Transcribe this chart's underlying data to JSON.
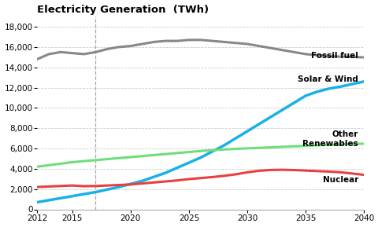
{
  "title": "Electricity Generation  (TWh)",
  "years": [
    2012,
    2013,
    2014,
    2015,
    2016,
    2017,
    2018,
    2019,
    2020,
    2021,
    2022,
    2023,
    2024,
    2025,
    2026,
    2027,
    2028,
    2029,
    2030,
    2031,
    2032,
    2033,
    2034,
    2035,
    2036,
    2037,
    2038,
    2039,
    2040
  ],
  "fossil_fuel": [
    14800,
    15300,
    15500,
    15400,
    15300,
    15500,
    15800,
    16000,
    16100,
    16300,
    16500,
    16600,
    16600,
    16700,
    16700,
    16600,
    16500,
    16400,
    16300,
    16100,
    15900,
    15700,
    15500,
    15300,
    15200,
    15100,
    15050,
    15020,
    14980
  ],
  "solar_wind": [
    700,
    900,
    1100,
    1300,
    1500,
    1700,
    1950,
    2200,
    2500,
    2800,
    3200,
    3600,
    4100,
    4600,
    5100,
    5700,
    6300,
    7000,
    7700,
    8400,
    9100,
    9800,
    10500,
    11200,
    11600,
    11900,
    12100,
    12350,
    12600
  ],
  "other_renewables": [
    4200,
    4350,
    4500,
    4650,
    4750,
    4850,
    4950,
    5050,
    5150,
    5250,
    5350,
    5450,
    5550,
    5650,
    5750,
    5830,
    5900,
    5960,
    6010,
    6060,
    6110,
    6160,
    6210,
    6260,
    6310,
    6360,
    6400,
    6440,
    6470
  ],
  "nuclear": [
    2200,
    2250,
    2300,
    2350,
    2280,
    2300,
    2350,
    2400,
    2450,
    2550,
    2650,
    2750,
    2850,
    2980,
    3080,
    3180,
    3300,
    3450,
    3650,
    3800,
    3880,
    3900,
    3870,
    3820,
    3770,
    3720,
    3650,
    3530,
    3400
  ],
  "fossil_color": "#888888",
  "solar_wind_color": "#1ab0e8",
  "other_renewables_color": "#6edd7a",
  "nuclear_color": "#e84040",
  "vline_x": 2017,
  "ylim": [
    0,
    19000
  ],
  "yticks": [
    0,
    2000,
    4000,
    6000,
    8000,
    10000,
    12000,
    14000,
    16000,
    18000
  ],
  "xticks": [
    2012,
    2015,
    2020,
    2025,
    2030,
    2035,
    2040
  ],
  "background_color": "#ffffff",
  "label_fossil": "Fossil fuel",
  "label_solar": "Solar & Wind",
  "label_other": "Other\nRenewables",
  "label_nuclear": "Nuclear",
  "title_fontsize": 9.5,
  "label_fontsize": 7.5,
  "tick_fontsize": 7.5
}
